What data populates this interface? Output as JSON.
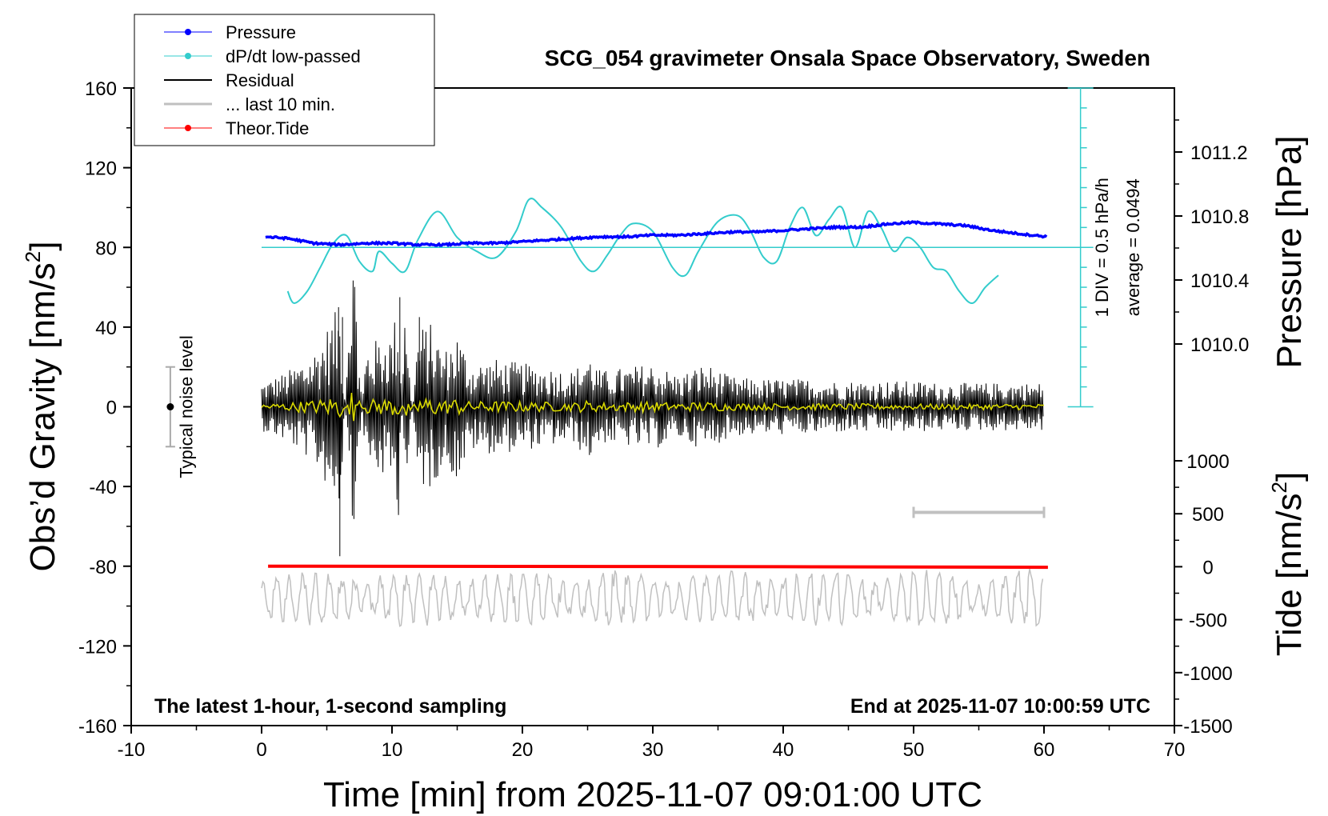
{
  "chart_data": {
    "type": "line",
    "title": "SCG_054 gravimeter Onsala Space Observatory, Sweden",
    "xlabel": "Time [min] from 2025-11-07 09:01:00 UTC",
    "ylabel_left": "Obs’d Gravity [nm/s",
    "ylabel_left_sup": "2",
    "ylabel_left_close": "]",
    "ylabel_right_top": "Pressure [hPa]",
    "ylabel_right_bottom": "Tide [nm/s",
    "ylabel_right_bottom_sup": "2",
    "ylabel_right_bottom_close": "]",
    "xlim": [
      -10,
      70
    ],
    "ylim": [
      -160,
      160
    ],
    "x_ticks": [
      "-10",
      "0",
      "10",
      "20",
      "30",
      "40",
      "50",
      "60",
      "70"
    ],
    "y_ticks_left": [
      "160",
      "120",
      "80",
      "40",
      "0",
      "-40",
      "-80",
      "-120",
      "-160"
    ],
    "y_ticks_pressure": [
      "1011.2",
      "1010.8",
      "1010.4",
      "1010.0"
    ],
    "y_ticks_tide": [
      "1000",
      "500",
      "0",
      "-500",
      "-1000",
      "-1500"
    ],
    "pressure_range": [
      1009.6,
      1011.6
    ],
    "tide_range": [
      -1500,
      1000
    ],
    "legend": {
      "position": "top-left",
      "items": [
        {
          "label": "Pressure",
          "color": "#0000ff",
          "marker": true
        },
        {
          "label": "dP/dt low-passed",
          "color": "#33cccc",
          "marker": true
        },
        {
          "label": "Residual",
          "color": "#000000",
          "marker": false
        },
        {
          "label": "... last 10 min.",
          "color": "#c0c0c0",
          "marker": false
        },
        {
          "label": "Theor.Tide",
          "color": "#ff0000",
          "marker": true
        }
      ]
    },
    "annotations": {
      "bottom_left": "The latest 1-hour, 1-second sampling",
      "bottom_right": "End at 2025-11-07 10:00:59 UTC",
      "noise_label": "Typical noise level",
      "dpdt_scale": "1 DIV = 0.5 hPa/h",
      "dpdt_average": "average = 0.0494"
    },
    "noise_bar": {
      "x": -7,
      "y_low": -20,
      "y_high": 20
    },
    "series": [
      {
        "name": "Pressure",
        "axis": "pressure",
        "color": "#0000ff",
        "x": [
          0.3,
          2,
          4,
          6,
          8,
          10,
          12,
          14,
          16,
          18,
          20,
          22,
          24,
          26,
          28,
          30,
          32,
          34,
          36,
          38,
          40,
          42,
          44,
          46,
          48,
          50,
          52,
          54,
          56,
          58,
          60.3
        ],
        "y": [
          1010.67,
          1010.66,
          1010.63,
          1010.62,
          1010.63,
          1010.63,
          1010.62,
          1010.62,
          1010.63,
          1010.63,
          1010.64,
          1010.65,
          1010.66,
          1010.67,
          1010.67,
          1010.68,
          1010.68,
          1010.69,
          1010.7,
          1010.7,
          1010.71,
          1010.72,
          1010.73,
          1010.73,
          1010.75,
          1010.76,
          1010.75,
          1010.74,
          1010.71,
          1010.69,
          1010.67
        ]
      },
      {
        "name": "dP/dt low-passed",
        "axis": "gravity",
        "color": "#33cccc",
        "x": [
          2,
          2.5,
          3.5,
          4.5,
          5.5,
          6.5,
          7.5,
          8.5,
          9,
          10,
          11,
          12,
          13.5,
          15,
          16.5,
          18,
          19.5,
          20.5,
          21.5,
          23,
          24.5,
          25.5,
          26.5,
          27.5,
          28.5,
          30,
          31.5,
          32.5,
          33.5,
          35,
          36.5,
          37.5,
          38.5,
          39.5,
          40.5,
          41.5,
          42.5,
          43.5,
          44.5,
          45.5,
          46.5,
          47.5,
          48.5,
          49.5,
          50.5,
          51.5,
          52.5,
          53.5,
          54.5,
          55.5,
          56.5
        ],
        "y": [
          58,
          52,
          58,
          70,
          82,
          86,
          73,
          68,
          78,
          72,
          68,
          84,
          98,
          85,
          78,
          75,
          88,
          104,
          100,
          90,
          73,
          68,
          76,
          86,
          92,
          88,
          70,
          66,
          78,
          93,
          96,
          88,
          75,
          73,
          90,
          100,
          86,
          94,
          100,
          80,
          98,
          90,
          78,
          85,
          80,
          70,
          68,
          58,
          52,
          60,
          66
        ]
      },
      {
        "name": "Residual",
        "axis": "gravity",
        "color": "#000000",
        "x": [
          0,
          2,
          4,
          5,
          6,
          7,
          8,
          9,
          10,
          10.5,
          11,
          12,
          13,
          14,
          15,
          16,
          18,
          20,
          22,
          24,
          25,
          26,
          28,
          30,
          32,
          34,
          36,
          38,
          40,
          42,
          44,
          46,
          48,
          50,
          52,
          54,
          56,
          58,
          60
        ],
        "y": [
          12,
          18,
          28,
          40,
          52,
          -75,
          30,
          35,
          38,
          55,
          -50,
          40,
          42,
          28,
          38,
          22,
          24,
          22,
          20,
          18,
          28,
          18,
          20,
          22,
          16,
          22,
          15,
          14,
          14,
          14,
          13,
          13,
          13,
          13,
          12,
          12,
          12,
          12,
          12
        ]
      },
      {
        "name": "... last 10 min.",
        "axis": "gravity",
        "color": "#c0c0c0",
        "x": [
          0,
          60
        ],
        "y": [
          -96,
          -96
        ]
      },
      {
        "name": "Theor.Tide",
        "axis": "tide",
        "color": "#ff0000",
        "x": [
          0.5,
          10,
          20,
          30,
          40,
          50,
          60.3
        ],
        "y": [
          5,
          4,
          3,
          2,
          0,
          -2,
          -5
        ]
      }
    ],
    "last10_marker": {
      "x_start": 50,
      "x_end": 60,
      "y": -53
    }
  }
}
